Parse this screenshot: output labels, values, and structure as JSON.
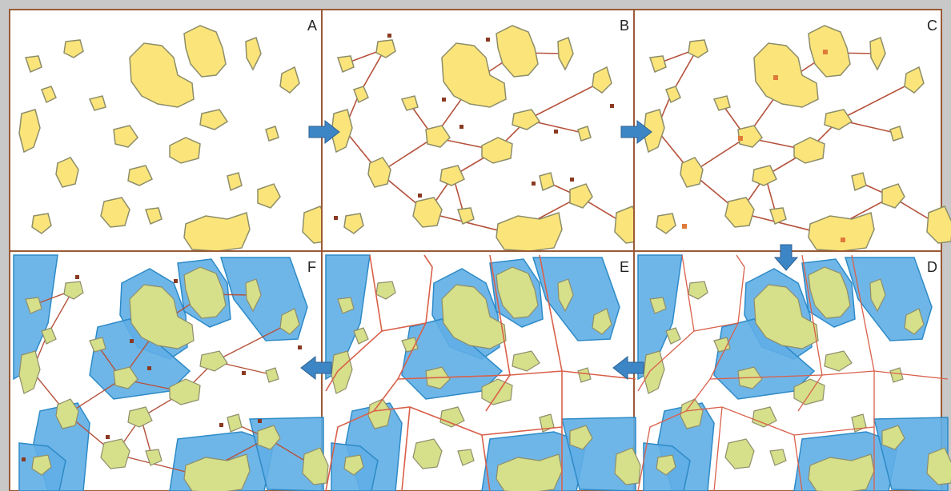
{
  "figure": {
    "colors": {
      "background": "#c8c8c8",
      "panel_border": "#9a5a36",
      "island_fill": "#fbe57a",
      "island_stroke": "#8d8d6a",
      "hull_fill": "#5faee6",
      "hull_stroke": "#2d8ac7",
      "edge": "#b5523b",
      "voronoi": "#d9604a",
      "arrow": "#3d86c6",
      "dot": "#8a3a22",
      "centroid": "#e07a3a"
    },
    "panels": [
      {
        "id": "A",
        "label": "A"
      },
      {
        "id": "B",
        "label": "B"
      },
      {
        "id": "C",
        "label": "C"
      },
      {
        "id": "D",
        "label": "D"
      },
      {
        "id": "E",
        "label": "E"
      },
      {
        "id": "F",
        "label": "F"
      }
    ],
    "arrows": [
      {
        "from": "A",
        "to": "B",
        "direction": "right",
        "icon": "arrow-right-icon"
      },
      {
        "from": "B",
        "to": "C",
        "direction": "right",
        "icon": "arrow-right-icon"
      },
      {
        "from": "C",
        "to": "D",
        "direction": "down",
        "icon": "arrow-down-icon"
      },
      {
        "from": "D",
        "to": "E",
        "direction": "left",
        "icon": "arrow-left-icon"
      },
      {
        "from": "E",
        "to": "F",
        "direction": "left",
        "icon": "arrow-left-icon"
      }
    ]
  }
}
